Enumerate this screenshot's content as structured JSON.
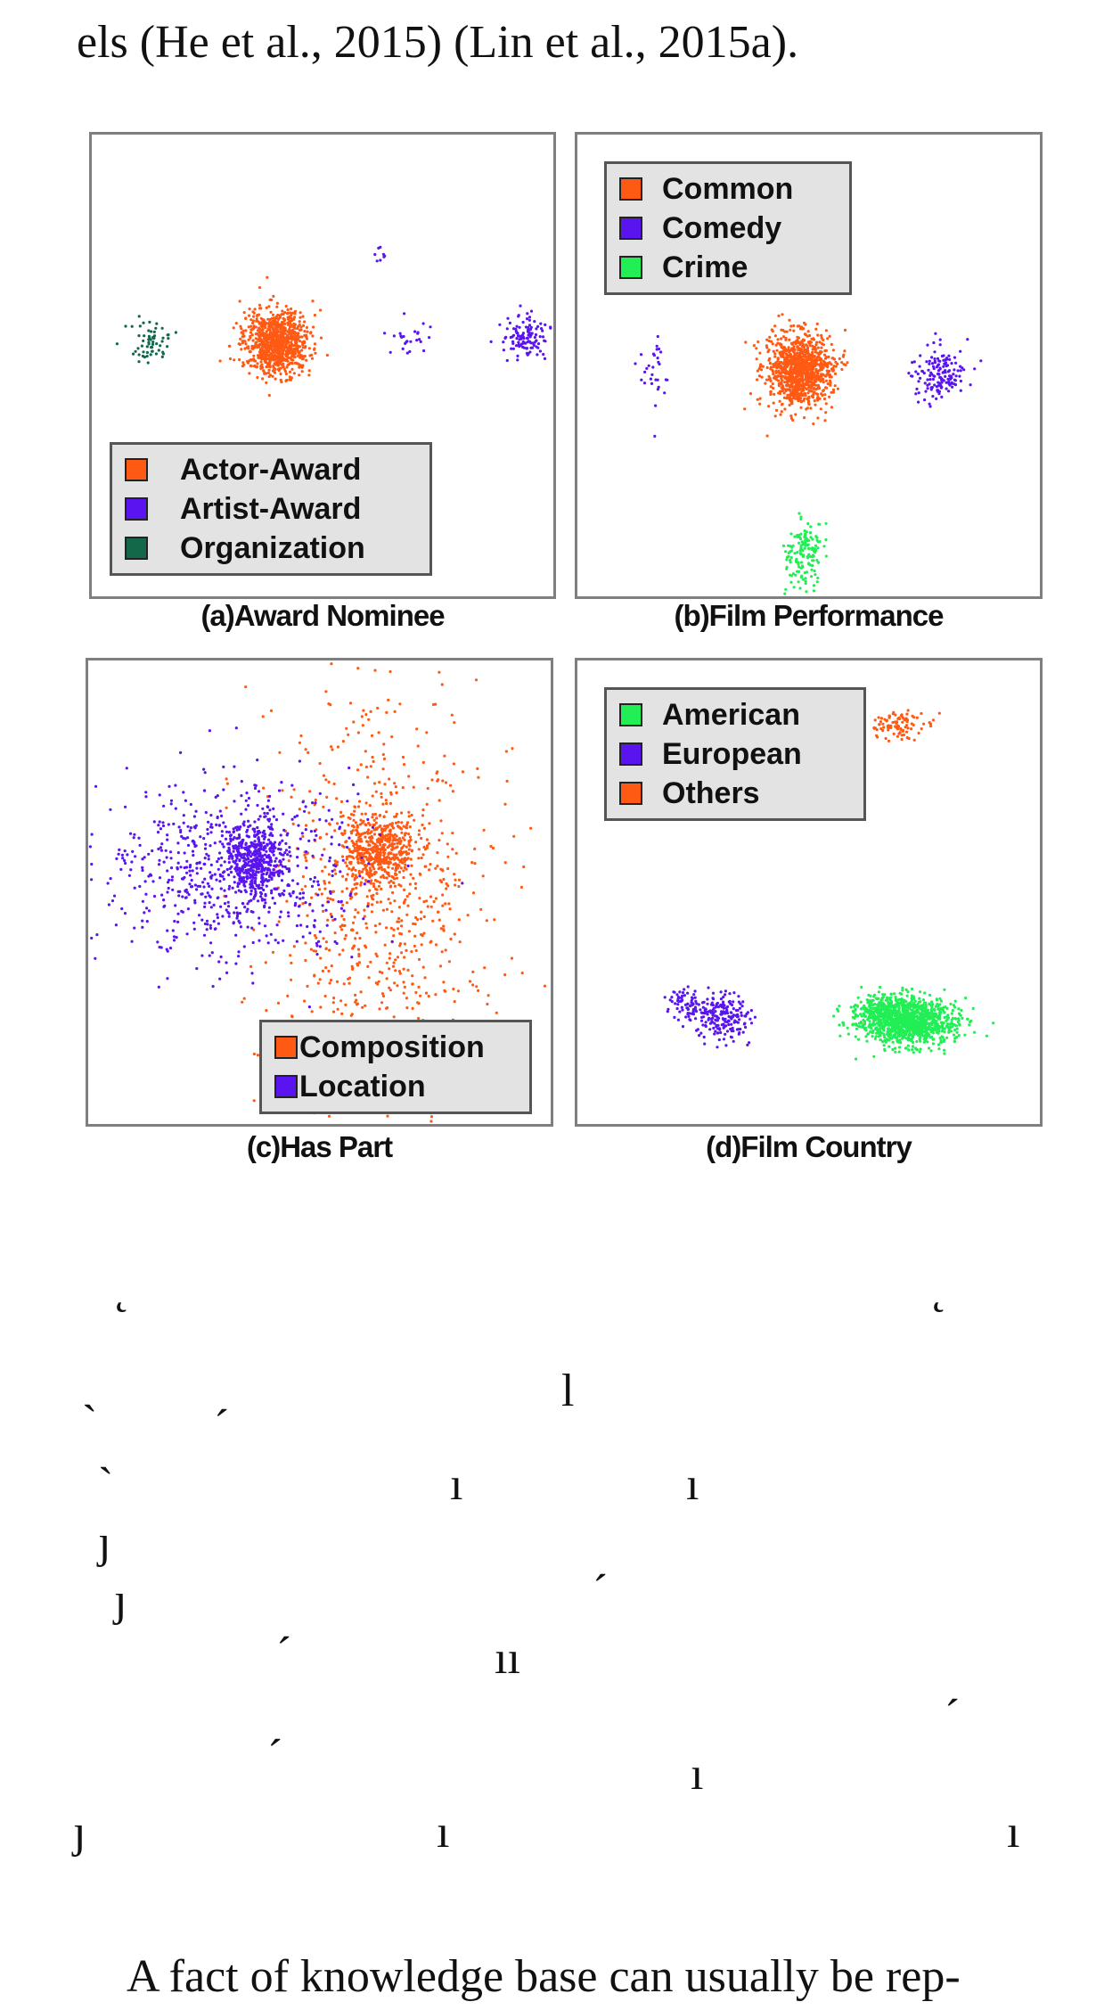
{
  "text": {
    "top_line": "els (He et al., 2015) (Lin et al., 2015a).",
    "bottom_line": "A fact of knowledge base can usually be rep-"
  },
  "panels": [
    {
      "caption": "(a)Award Nominee",
      "legend": [
        {
          "label": "Actor-Award",
          "color": "#ff5a14"
        },
        {
          "label": "Artist-Award",
          "color": "#5a14f0"
        },
        {
          "label": "Organization",
          "color": "#14684a"
        }
      ]
    },
    {
      "caption": "(b)Film Performance",
      "legend": [
        {
          "label": "Common",
          "color": "#ff5a14"
        },
        {
          "label": "Comedy",
          "color": "#5a14f0"
        },
        {
          "label": "Crime",
          "color": "#22ee55"
        }
      ]
    },
    {
      "caption": "(c)Has Part",
      "legend": [
        {
          "label": "Composition",
          "color": "#ff5a14"
        },
        {
          "label": "Location",
          "color": "#5a14f0"
        }
      ]
    },
    {
      "caption": "(d)Film Country",
      "legend": [
        {
          "label": "American",
          "color": "#22ee55"
        },
        {
          "label": "European",
          "color": "#5a14f0"
        },
        {
          "label": "Others",
          "color": "#ff5a14"
        }
      ]
    }
  ],
  "chart_data": [
    {
      "type": "scatter",
      "title": "(a)Award Nominee",
      "series": [
        {
          "name": "Actor-Award",
          "clusters": [
            {
              "x": 0.4,
              "y": 0.45,
              "sx": 0.035,
              "sy": 0.035,
              "n": 900
            }
          ]
        },
        {
          "name": "Artist-Award",
          "clusters": [
            {
              "x": 0.94,
              "y": 0.44,
              "sx": 0.025,
              "sy": 0.022,
              "n": 120
            },
            {
              "x": 0.69,
              "y": 0.44,
              "sx": 0.025,
              "sy": 0.02,
              "n": 25
            },
            {
              "x": 0.63,
              "y": 0.26,
              "sx": 0.01,
              "sy": 0.01,
              "n": 8
            }
          ]
        },
        {
          "name": "Organization",
          "clusters": [
            {
              "x": 0.13,
              "y": 0.45,
              "sx": 0.02,
              "sy": 0.02,
              "n": 60
            }
          ]
        }
      ]
    },
    {
      "type": "scatter",
      "title": "(b)Film Performance",
      "series": [
        {
          "name": "Common",
          "clusters": [
            {
              "x": 0.48,
              "y": 0.51,
              "sx": 0.035,
              "sy": 0.04,
              "n": 1000
            }
          ]
        },
        {
          "name": "Comedy",
          "clusters": [
            {
              "x": 0.78,
              "y": 0.52,
              "sx": 0.028,
              "sy": 0.03,
              "n": 150
            },
            {
              "x": 0.16,
              "y": 0.51,
              "sx": 0.02,
              "sy": 0.04,
              "n": 30
            }
          ]
        },
        {
          "name": "Crime",
          "clusters": [
            {
              "x": 0.49,
              "y": 0.91,
              "sx": 0.02,
              "sy": 0.04,
              "n": 150
            }
          ]
        }
      ]
    },
    {
      "type": "scatter",
      "title": "(c)Has Part",
      "series": [
        {
          "name": "Composition",
          "clusters": [
            {
              "x": 0.63,
              "y": 0.41,
              "sx": 0.04,
              "sy": 0.04,
              "n": 500
            },
            {
              "x": 0.63,
              "y": 0.55,
              "sx": 0.12,
              "sy": 0.25,
              "n": 800
            }
          ]
        },
        {
          "name": "Location",
          "clusters": [
            {
              "x": 0.36,
              "y": 0.43,
              "sx": 0.03,
              "sy": 0.04,
              "n": 400
            },
            {
              "x": 0.31,
              "y": 0.45,
              "sx": 0.14,
              "sy": 0.09,
              "n": 700
            }
          ]
        }
      ]
    },
    {
      "type": "scatter",
      "title": "(d)Film Country",
      "series": [
        {
          "name": "American",
          "clusters": [
            {
              "x": 0.72,
              "y": 0.78,
              "sx": 0.05,
              "sy": 0.025,
              "n": 1000
            },
            {
              "x": 0.66,
              "y": 0.76,
              "sx": 0.035,
              "sy": 0.02,
              "n": 300
            }
          ]
        },
        {
          "name": "European",
          "clusters": [
            {
              "x": 0.31,
              "y": 0.77,
              "sx": 0.03,
              "sy": 0.025,
              "n": 200
            },
            {
              "x": 0.23,
              "y": 0.74,
              "sx": 0.015,
              "sy": 0.02,
              "n": 60
            }
          ]
        },
        {
          "name": "Others",
          "clusters": [
            {
              "x": 0.7,
              "y": 0.14,
              "sx": 0.035,
              "sy": 0.015,
              "n": 100
            }
          ]
        }
      ]
    }
  ]
}
